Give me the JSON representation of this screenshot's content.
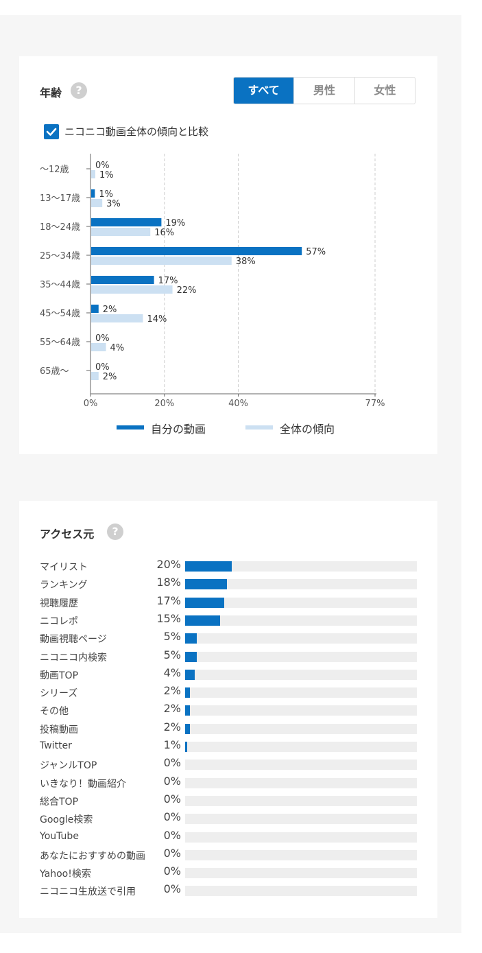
{
  "age_card": {
    "title": "年齢",
    "help": "?",
    "tabs": [
      {
        "label": "すべて",
        "active": true
      },
      {
        "label": "男性",
        "active": false
      },
      {
        "label": "女性",
        "active": false
      }
    ],
    "compare_label": "ニコニコ動画全体の傾向と比較",
    "compare_checked": true
  },
  "chart_data": {
    "type": "bar",
    "orientation": "horizontal",
    "categories": [
      "～12歳",
      "13～17歳",
      "18～24歳",
      "25～34歳",
      "35～44歳",
      "45～54歳",
      "55～64歳",
      "65歳～"
    ],
    "series": [
      {
        "name": "自分の動画",
        "color": "#0a72c2",
        "values": [
          0,
          1,
          19,
          57,
          17,
          2,
          0,
          0
        ]
      },
      {
        "name": "全体の傾向",
        "color": "#cce0f2",
        "values": [
          1,
          3,
          16,
          38,
          22,
          14,
          4,
          2
        ]
      }
    ],
    "xlim": [
      0,
      77
    ],
    "xticks": [
      0,
      20,
      40,
      77
    ],
    "xtick_labels": [
      "0%",
      "20%",
      "40%",
      "77%"
    ],
    "grid": true,
    "legend": "bottom"
  },
  "access_card": {
    "title": "アクセス元",
    "help": "?",
    "items": [
      {
        "label": "マイリスト",
        "percent": "20%",
        "value": 20
      },
      {
        "label": "ランキング",
        "percent": "18%",
        "value": 18
      },
      {
        "label": "視聴履歴",
        "percent": "17%",
        "value": 17
      },
      {
        "label": "ニコレポ",
        "percent": "15%",
        "value": 15
      },
      {
        "label": "動画視聴ページ",
        "percent": "5%",
        "value": 5
      },
      {
        "label": "ニコニコ内検索",
        "percent": "5%",
        "value": 5
      },
      {
        "label": "動画TOP",
        "percent": "4%",
        "value": 4
      },
      {
        "label": "シリーズ",
        "percent": "2%",
        "value": 2
      },
      {
        "label": "その他",
        "percent": "2%",
        "value": 2
      },
      {
        "label": "投稿動画",
        "percent": "2%",
        "value": 2
      },
      {
        "label": "Twitter",
        "percent": "1%",
        "value": 1
      },
      {
        "label": "ジャンルTOP",
        "percent": "0%",
        "value": 0
      },
      {
        "label": "いきなり！動画紹介",
        "percent": "0%",
        "value": 0
      },
      {
        "label": "総合TOP",
        "percent": "0%",
        "value": 0
      },
      {
        "label": "Google検索",
        "percent": "0%",
        "value": 0
      },
      {
        "label": "YouTube",
        "percent": "0%",
        "value": 0
      },
      {
        "label": "あなたにおすすめの動画",
        "percent": "0%",
        "value": 0
      },
      {
        "label": "Yahoo!検索",
        "percent": "0%",
        "value": 0
      },
      {
        "label": "ニコニコ生放送で引用",
        "percent": "0%",
        "value": 0
      }
    ],
    "bar_max": 100
  },
  "colors": {
    "accent": "#0a72c2",
    "light": "#cce0f2",
    "track": "#eeeeee"
  }
}
